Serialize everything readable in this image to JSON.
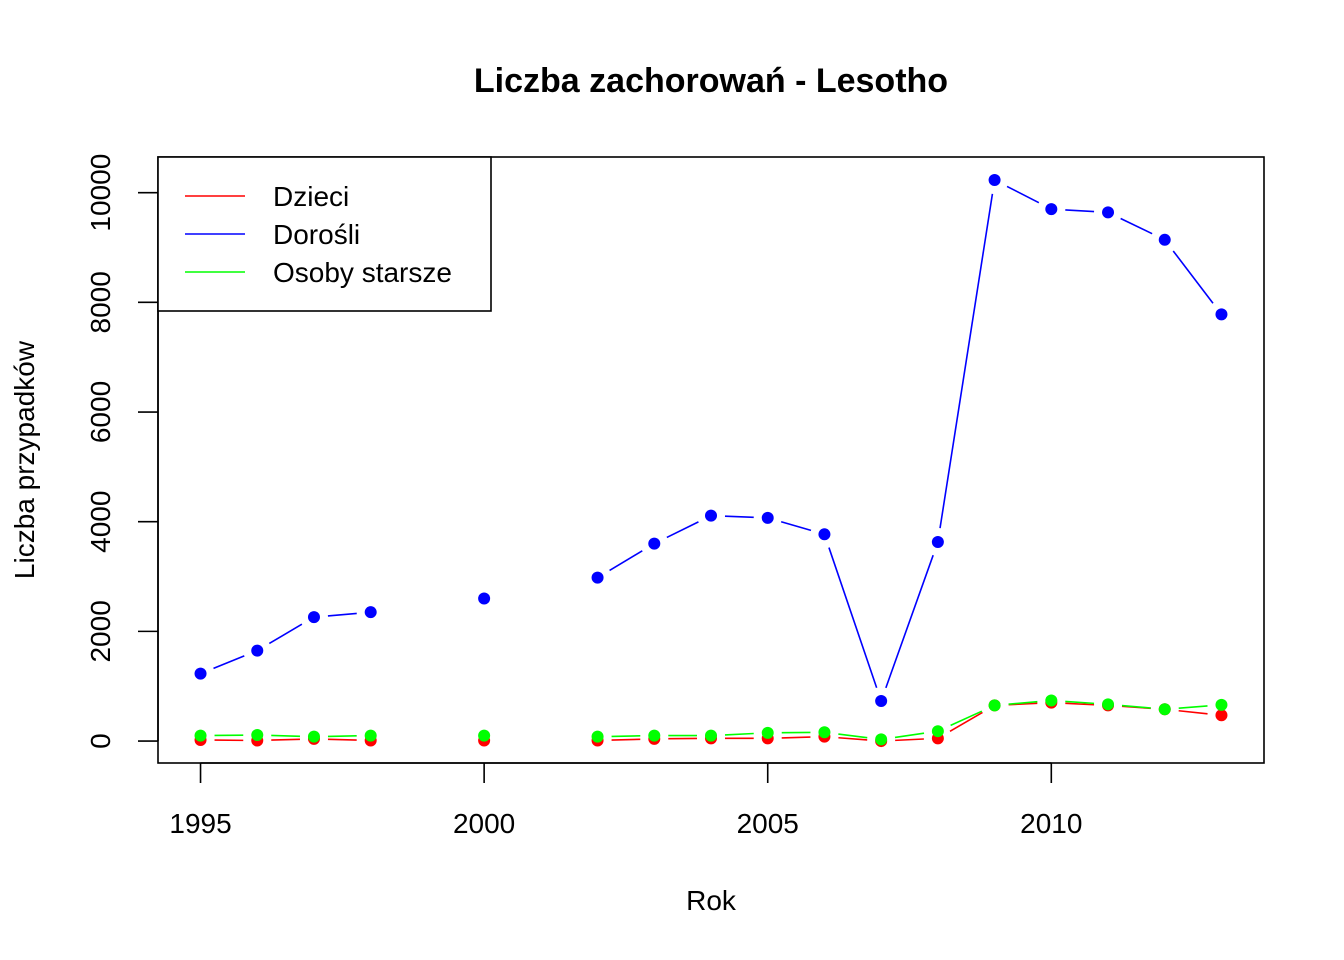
{
  "chart_data": {
    "type": "line",
    "title": "Liczba zachorowań -  Lesotho",
    "xlabel": "Rok",
    "ylabel": "Liczba przypadków",
    "xlim": [
      1994.25,
      2013.75
    ],
    "ylim": [
      -400,
      10650
    ],
    "x_ticks": [
      1995,
      2000,
      2005,
      2010
    ],
    "y_ticks": [
      0,
      2000,
      4000,
      6000,
      8000,
      10000
    ],
    "grid": false,
    "legend_position": "top-left",
    "x": [
      1995,
      1996,
      1997,
      1998,
      1999,
      2000,
      2001,
      2002,
      2003,
      2004,
      2005,
      2006,
      2007,
      2008,
      2009,
      2010,
      2011,
      2012,
      2013
    ],
    "series": [
      {
        "name": "Dzieci",
        "color": "#ff0000",
        "values": [
          20,
          10,
          40,
          10,
          null,
          10,
          null,
          10,
          40,
          50,
          50,
          80,
          0,
          50,
          650,
          700,
          650,
          580,
          470
        ]
      },
      {
        "name": "Dorośli",
        "color": "#0000ff",
        "values": [
          1230,
          1650,
          2260,
          2350,
          null,
          2600,
          null,
          2980,
          3600,
          4110,
          4070,
          3770,
          730,
          3630,
          10230,
          9700,
          9640,
          9140,
          7780
        ]
      },
      {
        "name": "Osoby starsze",
        "color": "#00ff00",
        "values": [
          100,
          110,
          80,
          100,
          null,
          100,
          null,
          80,
          100,
          100,
          150,
          160,
          30,
          180,
          650,
          740,
          670,
          580,
          660
        ]
      }
    ]
  }
}
